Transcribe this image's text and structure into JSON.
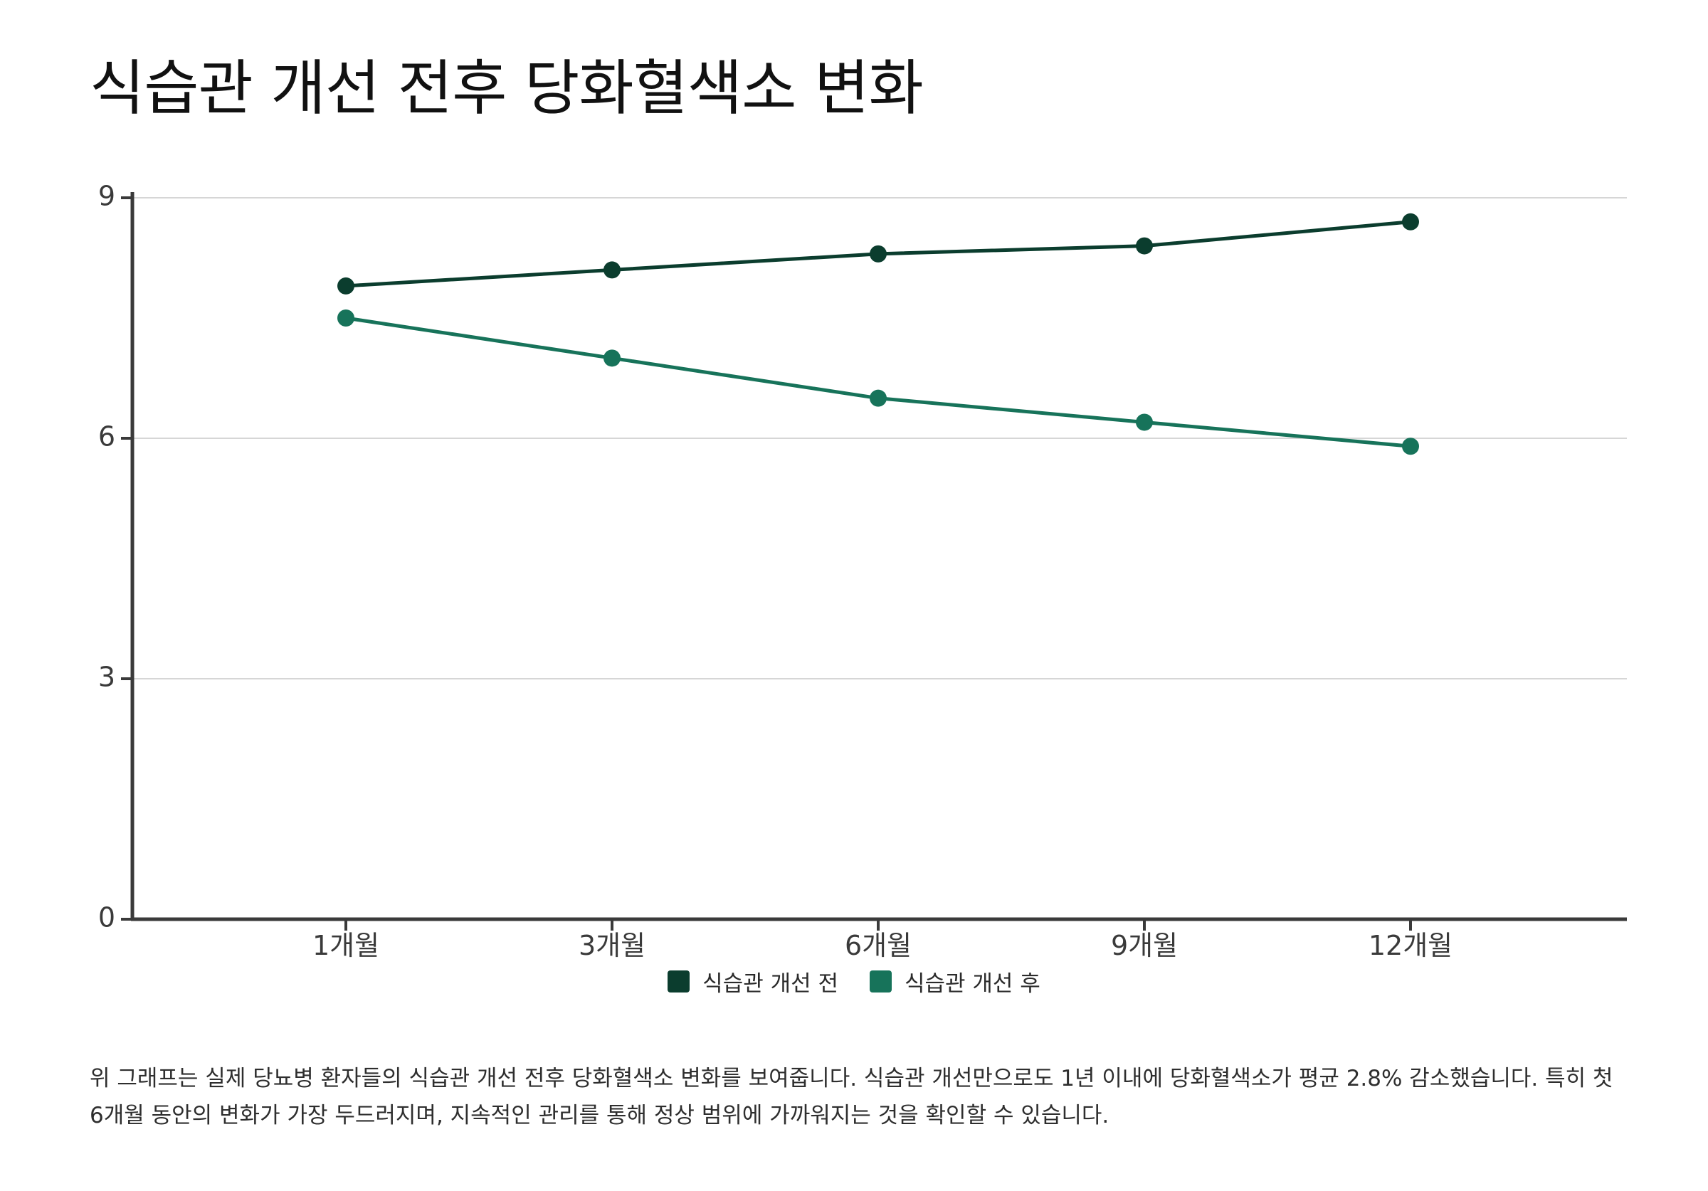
{
  "title": "식습관 개선 전후 당화혈색소 변화",
  "chart_data": {
    "type": "line",
    "categories": [
      "1개월",
      "3개월",
      "6개월",
      "9개월",
      "12개월"
    ],
    "series": [
      {
        "name": "식습관 개선 전",
        "values": [
          7.9,
          8.1,
          8.3,
          8.4,
          8.7
        ],
        "color": "#0b3d2e"
      },
      {
        "name": "식습관 개선 후",
        "values": [
          7.5,
          7.0,
          6.5,
          6.2,
          5.9
        ],
        "color": "#17735a"
      }
    ],
    "ylim": [
      0,
      9
    ],
    "yticks": [
      "0",
      "3",
      "6",
      "9"
    ],
    "grid": true,
    "legend": "bottom-center",
    "xlabel": "",
    "ylabel": ""
  },
  "caption": "위 그래프는 실제 당뇨병 환자들의 식습관 개선 전후 당화혈색소 변화를 보여줍니다. 식습관 개선만으로도 1년 이내에 당화혈색소가 평균 2.8% 감소했습니다. 특히 첫 6개월 동안의 변화가 가장 두드러지며, 지속적인 관리를 통해 정상 범위에 가까워지는 것을 확인할 수 있습니다."
}
